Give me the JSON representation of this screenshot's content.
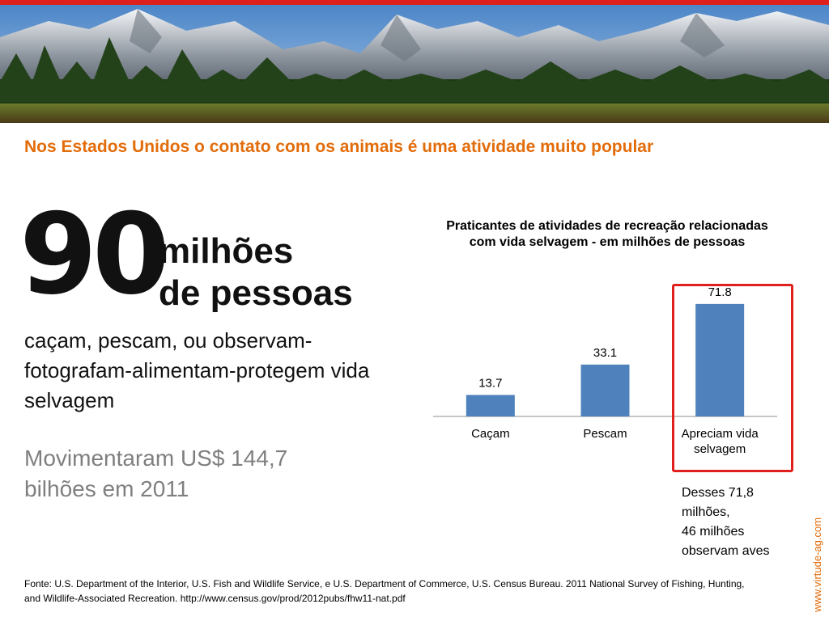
{
  "headline": "Nos Estados Unidos o contato com os animais é uma atividade muito popular",
  "stat": {
    "number": "90",
    "unit_line1": "milhões",
    "unit_line2": "de pessoas",
    "activities": "caçam, pescam, ou observam-fotografam-alimentam-protegem vida selvagem",
    "money": "Movimentaram US$ 144,7 bilhões em 2011"
  },
  "chart_data": {
    "type": "bar",
    "title": "Praticantes de atividades de recreação relacionadas com vida selvagem - em milhões de pessoas",
    "categories": [
      [
        "Caçam"
      ],
      [
        "Pescam"
      ],
      [
        "Apreciam vida",
        "selvagem"
      ]
    ],
    "values": [
      13.7,
      33.1,
      71.8
    ],
    "data_labels": [
      "13.7",
      "33.1",
      "71.8"
    ],
    "ylim": [
      0,
      80
    ],
    "bar_color": "#4f81bd",
    "highlight_color": "#e0201c",
    "highlighted_category": 2,
    "grid": false
  },
  "note": {
    "line1": "Desses 71,8",
    "line2": "milhões,",
    "line3": "46 milhões",
    "line4": "observam aves"
  },
  "watermark": "www.virtude-ag.com",
  "source": {
    "line1": "Fonte: U.S. Department of the Interior, U.S. Fish and Wildlife Service, e U.S. Department of Commerce, U.S. Census Bureau. 2011 National Survey of Fishing, Hunting,",
    "line2": "and Wildlife-Associated Recreation. http://www.census.gov/prod/2012pubs/fhw11-nat.pdf"
  },
  "colors": {
    "top_bar": "#e0201c",
    "headline": "#e36c0a",
    "money_text": "#7f7f7f"
  }
}
